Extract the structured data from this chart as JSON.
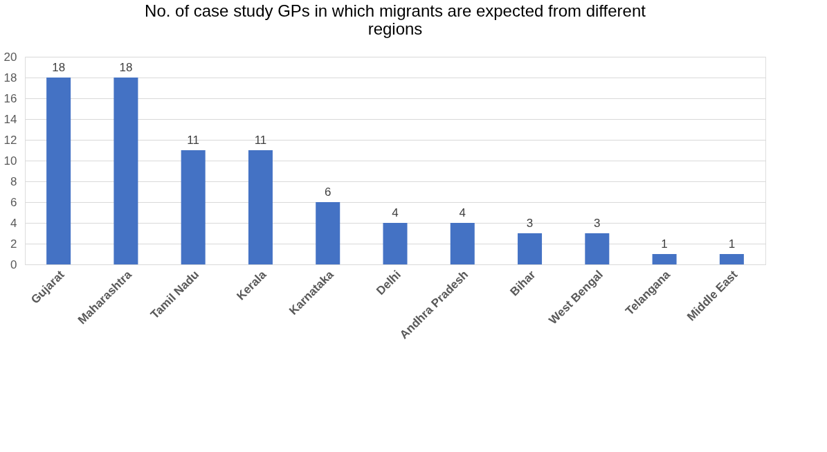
{
  "chart_data": {
    "type": "bar",
    "title": "No. of case study GPs  in which migrants are expected from different regions",
    "categories": [
      "Gujarat",
      "Maharashtra",
      "Tamil Nadu",
      "Kerala",
      "Karnataka",
      "Delhi",
      "Andhra Pradesh",
      "Bihar",
      "West Bengal",
      "Telangana",
      "Middle East"
    ],
    "values": [
      18,
      18,
      11,
      11,
      6,
      4,
      4,
      3,
      3,
      1,
      1
    ],
    "color": "#4472c4",
    "ylim": [
      0,
      20
    ],
    "yticks": [
      0,
      2,
      4,
      6,
      8,
      10,
      12,
      14,
      16,
      18,
      20
    ],
    "grid": "y",
    "data_labels": true
  }
}
